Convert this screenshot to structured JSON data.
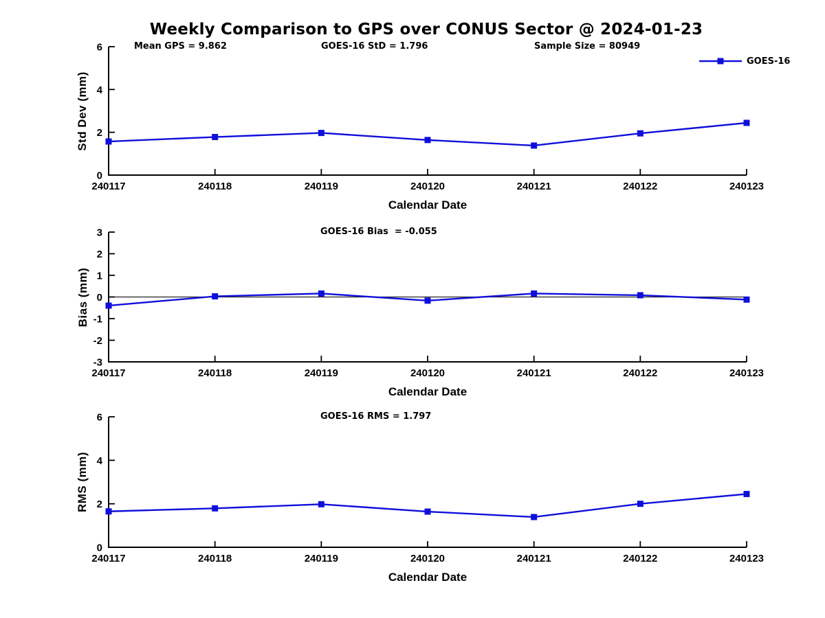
{
  "title": "Weekly Comparison to GPS over CONUS Sector @ 2024-01-23",
  "legend": {
    "label": "GOES-16"
  },
  "colors": {
    "line": "#0f0fdc",
    "axis": "#000000",
    "zero_line": "#222222"
  },
  "chart_data": [
    {
      "type": "line",
      "series_name": "GOES-16",
      "ylabel": "Std Dev (mm)",
      "xlabel": "Calendar Date",
      "ylim": [
        0,
        6
      ],
      "yticks": [
        0,
        2,
        4,
        6
      ],
      "categories": [
        "240117",
        "240118",
        "240119",
        "240120",
        "240121",
        "240122",
        "240123"
      ],
      "values": [
        1.57,
        1.78,
        1.97,
        1.64,
        1.38,
        1.95,
        2.44
      ],
      "zero_line": false,
      "legend_position": "top-right",
      "grid": false,
      "annotations": [
        {
          "text": "Mean GPS = 9.862"
        },
        {
          "text": "GOES-16 StD = 1.796"
        },
        {
          "text": "Sample Size = 80949"
        }
      ]
    },
    {
      "type": "line",
      "series_name": "GOES-16",
      "ylabel": "Bias (mm)",
      "xlabel": "Calendar Date",
      "ylim": [
        -3,
        3
      ],
      "yticks": [
        -3,
        -2,
        -1,
        0,
        1,
        2,
        3
      ],
      "categories": [
        "240117",
        "240118",
        "240119",
        "240120",
        "240121",
        "240122",
        "240123"
      ],
      "values": [
        -0.4,
        0.03,
        0.16,
        -0.17,
        0.16,
        0.08,
        -0.12
      ],
      "zero_line": true,
      "grid": false,
      "annotations": [
        {
          "text": "GOES-16 Bias  = -0.055"
        }
      ]
    },
    {
      "type": "line",
      "series_name": "GOES-16",
      "ylabel": "RMS (mm)",
      "xlabel": "Calendar Date",
      "ylim": [
        0,
        6
      ],
      "yticks": [
        0,
        2,
        4,
        6
      ],
      "categories": [
        "240117",
        "240118",
        "240119",
        "240120",
        "240121",
        "240122",
        "240123"
      ],
      "values": [
        1.65,
        1.79,
        1.98,
        1.64,
        1.39,
        2.0,
        2.45
      ],
      "zero_line": false,
      "grid": false,
      "annotations": [
        {
          "text": "GOES-16 RMS = 1.797"
        }
      ]
    }
  ]
}
